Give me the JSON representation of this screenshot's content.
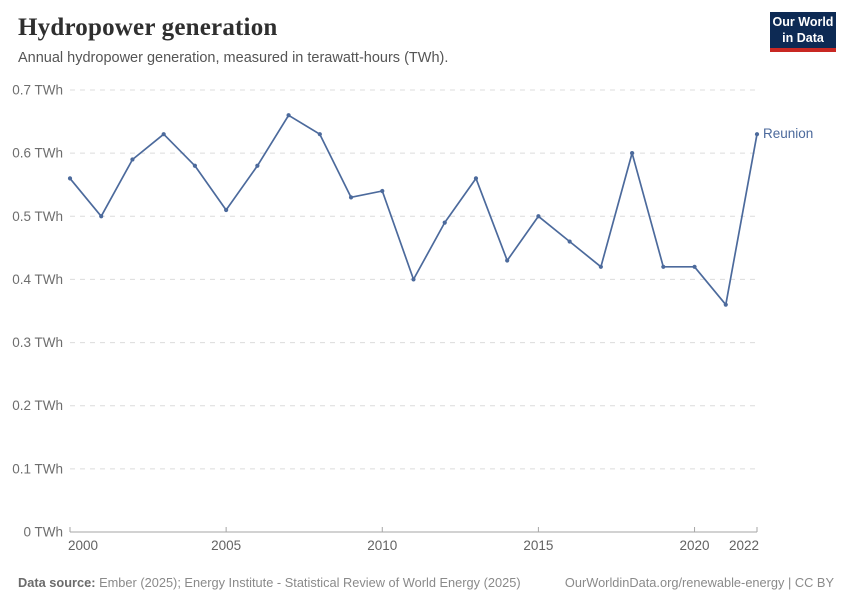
{
  "header": {
    "title": "Hydropower generation",
    "subtitle": "Annual hydropower generation, measured in terawatt-hours (TWh)."
  },
  "logo": {
    "line1": "Our World",
    "line2": "in Data",
    "bg_color": "#0d2a54",
    "bar_color": "#c82823"
  },
  "chart_data": {
    "type": "line",
    "title": "Hydropower generation",
    "unit": "TWh",
    "x": [
      2000,
      2001,
      2002,
      2003,
      2004,
      2005,
      2006,
      2007,
      2008,
      2009,
      2010,
      2011,
      2012,
      2013,
      2014,
      2015,
      2016,
      2017,
      2018,
      2019,
      2020,
      2021,
      2022
    ],
    "series": [
      {
        "name": "Reunion",
        "color": "#4c6a9c",
        "values": [
          0.56,
          0.5,
          0.59,
          0.63,
          0.58,
          0.51,
          0.58,
          0.66,
          0.63,
          0.53,
          0.54,
          0.4,
          0.49,
          0.56,
          0.43,
          0.5,
          0.46,
          0.42,
          0.6,
          0.42,
          0.42,
          0.36,
          0.63
        ]
      }
    ],
    "ylim": [
      0,
      0.7
    ],
    "y_ticks": [
      {
        "value": 0,
        "label": "0 TWh"
      },
      {
        "value": 0.1,
        "label": "0.1 TWh"
      },
      {
        "value": 0.2,
        "label": "0.2 TWh"
      },
      {
        "value": 0.3,
        "label": "0.3 TWh"
      },
      {
        "value": 0.4,
        "label": "0.4 TWh"
      },
      {
        "value": 0.5,
        "label": "0.5 TWh"
      },
      {
        "value": 0.6,
        "label": "0.6 TWh"
      },
      {
        "value": 0.7,
        "label": "0.7 TWh"
      }
    ],
    "x_ticks": [
      {
        "value": 2000,
        "label": "2000"
      },
      {
        "value": 2005,
        "label": "2005"
      },
      {
        "value": 2010,
        "label": "2010"
      },
      {
        "value": 2015,
        "label": "2015"
      },
      {
        "value": 2020,
        "label": "2020"
      },
      {
        "value": 2022,
        "label": "2022"
      }
    ],
    "grid": "horizontal-dashed",
    "legend_position": "right-end-label",
    "colors": {
      "grid": "#dcdcdc",
      "axis": "#a6a6a6"
    }
  },
  "footer": {
    "source_label": "Data source:",
    "source_rest": " Ember (2025); Energy Institute - Statistical Review of World Energy (2025)",
    "credit": "OurWorldinData.org/renewable-energy | CC BY"
  }
}
